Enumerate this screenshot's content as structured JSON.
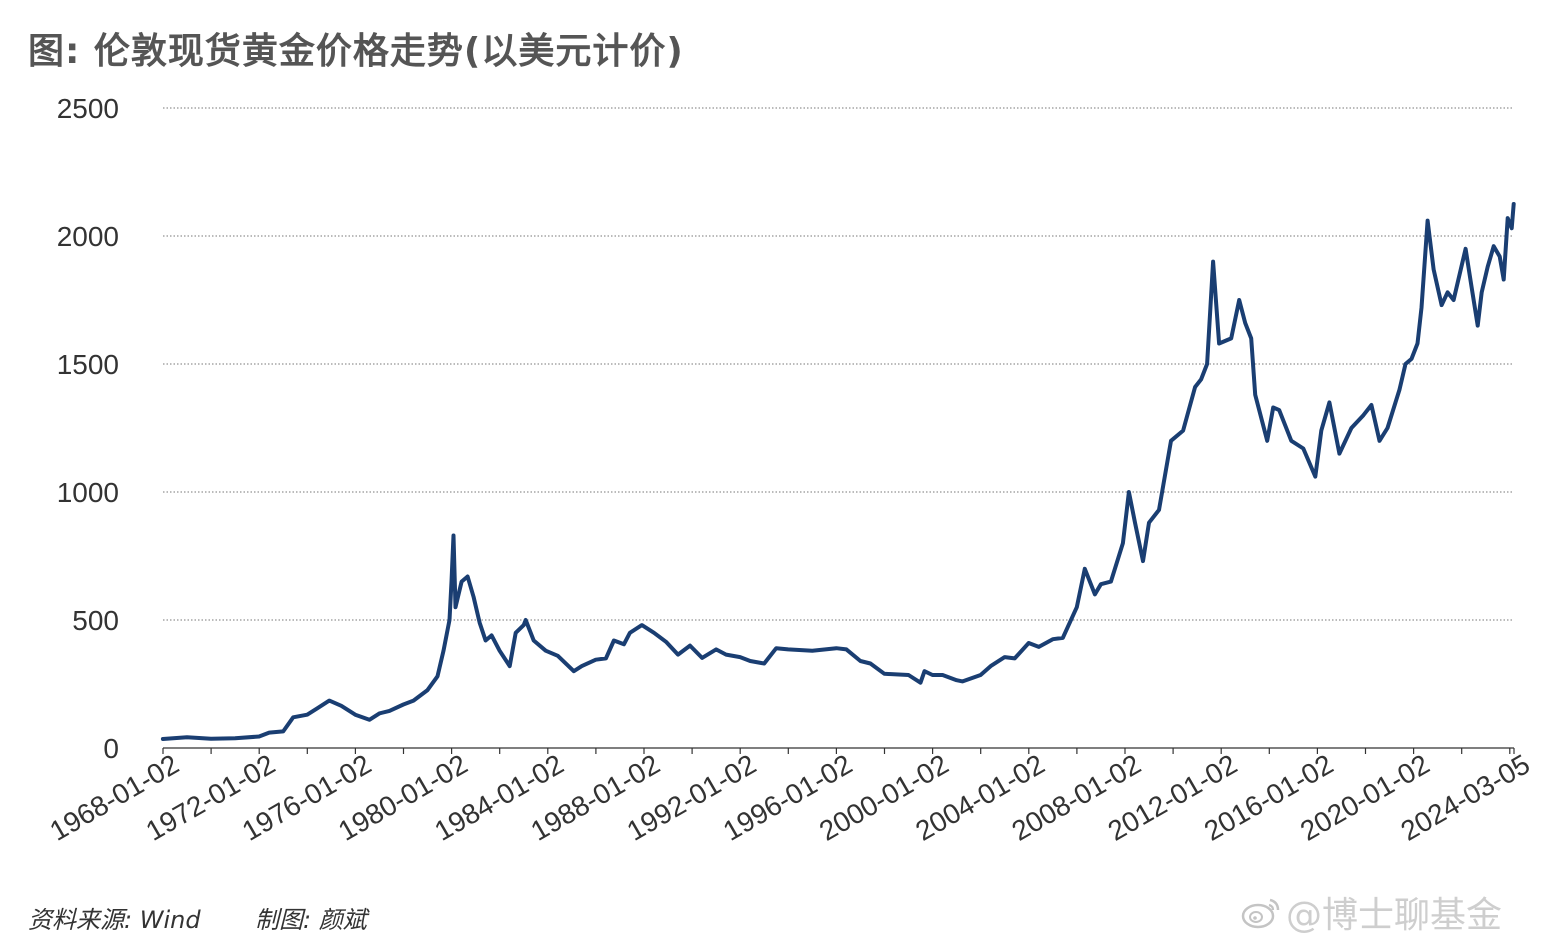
{
  "title": "图: 伦敦现货黄金价格走势(以美元计价)",
  "footer": {
    "source": "资料来源: Wind",
    "maker": "制图: 颜斌"
  },
  "watermark": {
    "text": "@博士聊基金",
    "icon": "weibo-logo-icon"
  },
  "chart_data": {
    "type": "line",
    "title": "图: 伦敦现货黄金价格走势(以美元计价)",
    "xlabel": "",
    "ylabel": "",
    "ylim": [
      0,
      2500
    ],
    "yticks": [
      0,
      500,
      1000,
      1500,
      2000,
      2500
    ],
    "xticks": [
      "1968-01-02",
      "1972-01-02",
      "1976-01-02",
      "1980-01-02",
      "1984-01-02",
      "1988-01-02",
      "1992-01-02",
      "1996-01-02",
      "2000-01-02",
      "2004-01-02",
      "2008-01-02",
      "2012-01-02",
      "2016-01-02",
      "2020-01-02",
      "2024-03-05"
    ],
    "grid": true,
    "legend": "none",
    "line_color": "#1a3e72",
    "series": [
      {
        "name": "",
        "x": [
          "1968-01",
          "1969-01",
          "1970-01",
          "1971-01",
          "1972-01",
          "1972-06",
          "1973-01",
          "1973-06",
          "1974-01",
          "1974-06",
          "1974-12",
          "1975-06",
          "1976-01",
          "1976-08",
          "1977-01",
          "1977-06",
          "1978-01",
          "1978-06",
          "1979-01",
          "1979-06",
          "1979-09",
          "1979-12",
          "1980-01",
          "1980-02",
          "1980-03",
          "1980-06",
          "1980-09",
          "1980-12",
          "1981-03",
          "1981-06",
          "1981-09",
          "1982-01",
          "1982-06",
          "1982-09",
          "1983-01",
          "1983-02",
          "1983-06",
          "1983-12",
          "1984-06",
          "1985-02",
          "1985-06",
          "1986-01",
          "1986-06",
          "1986-10",
          "1987-03",
          "1987-06",
          "1987-12",
          "1988-06",
          "1988-12",
          "1989-06",
          "1989-12",
          "1990-06",
          "1991-01",
          "1991-06",
          "1992-01",
          "1992-06",
          "1993-01",
          "1993-07",
          "1994-01",
          "1995-01",
          "1996-01",
          "1996-06",
          "1997-01",
          "1997-06",
          "1998-01",
          "1999-01",
          "1999-07",
          "1999-09",
          "2000-01",
          "2000-06",
          "2001-01",
          "2001-04",
          "2002-01",
          "2002-06",
          "2003-01",
          "2003-06",
          "2004-01",
          "2004-06",
          "2005-01",
          "2005-06",
          "2006-01",
          "2006-05",
          "2006-10",
          "2007-01",
          "2007-06",
          "2007-12",
          "2008-03",
          "2008-06",
          "2008-10",
          "2009-01",
          "2009-06",
          "2009-12",
          "2010-06",
          "2010-12",
          "2011-03",
          "2011-06",
          "2011-09",
          "2011-12",
          "2012-06",
          "2012-10",
          "2013-01",
          "2013-04",
          "2013-06",
          "2013-12",
          "2014-03",
          "2014-06",
          "2014-12",
          "2015-06",
          "2015-12",
          "2016-03",
          "2016-07",
          "2016-12",
          "2017-06",
          "2017-12",
          "2018-04",
          "2018-08",
          "2018-12",
          "2019-06",
          "2019-09",
          "2019-12",
          "2020-03",
          "2020-05",
          "2020-08",
          "2020-11",
          "2021-03",
          "2021-06",
          "2021-09",
          "2022-03",
          "2022-06",
          "2022-09",
          "2022-11",
          "2023-02",
          "2023-05",
          "2023-08",
          "2023-10",
          "2023-12",
          "2024-02",
          "2024-03"
        ],
        "values": [
          35,
          42,
          36,
          38,
          45,
          60,
          65,
          120,
          130,
          155,
          185,
          165,
          130,
          110,
          135,
          145,
          170,
          185,
          226,
          280,
          380,
          500,
          650,
          830,
          550,
          650,
          670,
          590,
          490,
          420,
          440,
          380,
          320,
          450,
          480,
          500,
          420,
          380,
          360,
          300,
          320,
          345,
          350,
          420,
          405,
          450,
          480,
          450,
          415,
          365,
          400,
          352,
          385,
          365,
          355,
          340,
          330,
          390,
          385,
          380,
          390,
          385,
          340,
          330,
          290,
          285,
          255,
          300,
          285,
          285,
          265,
          260,
          285,
          320,
          355,
          350,
          410,
          395,
          425,
          430,
          550,
          700,
          600,
          640,
          650,
          800,
          1000,
          880,
          730,
          880,
          930,
          1200,
          1240,
          1410,
          1440,
          1500,
          1900,
          1580,
          1600,
          1750,
          1660,
          1600,
          1380,
          1200,
          1330,
          1320,
          1200,
          1170,
          1060,
          1240,
          1350,
          1150,
          1250,
          1300,
          1340,
          1200,
          1250,
          1400,
          1500,
          1520,
          1580,
          1720,
          2060,
          1870,
          1730,
          1780,
          1750,
          1950,
          1800,
          1650,
          1780,
          1880,
          1960,
          1920,
          1830,
          2070,
          2030,
          2125
        ]
      }
    ]
  }
}
